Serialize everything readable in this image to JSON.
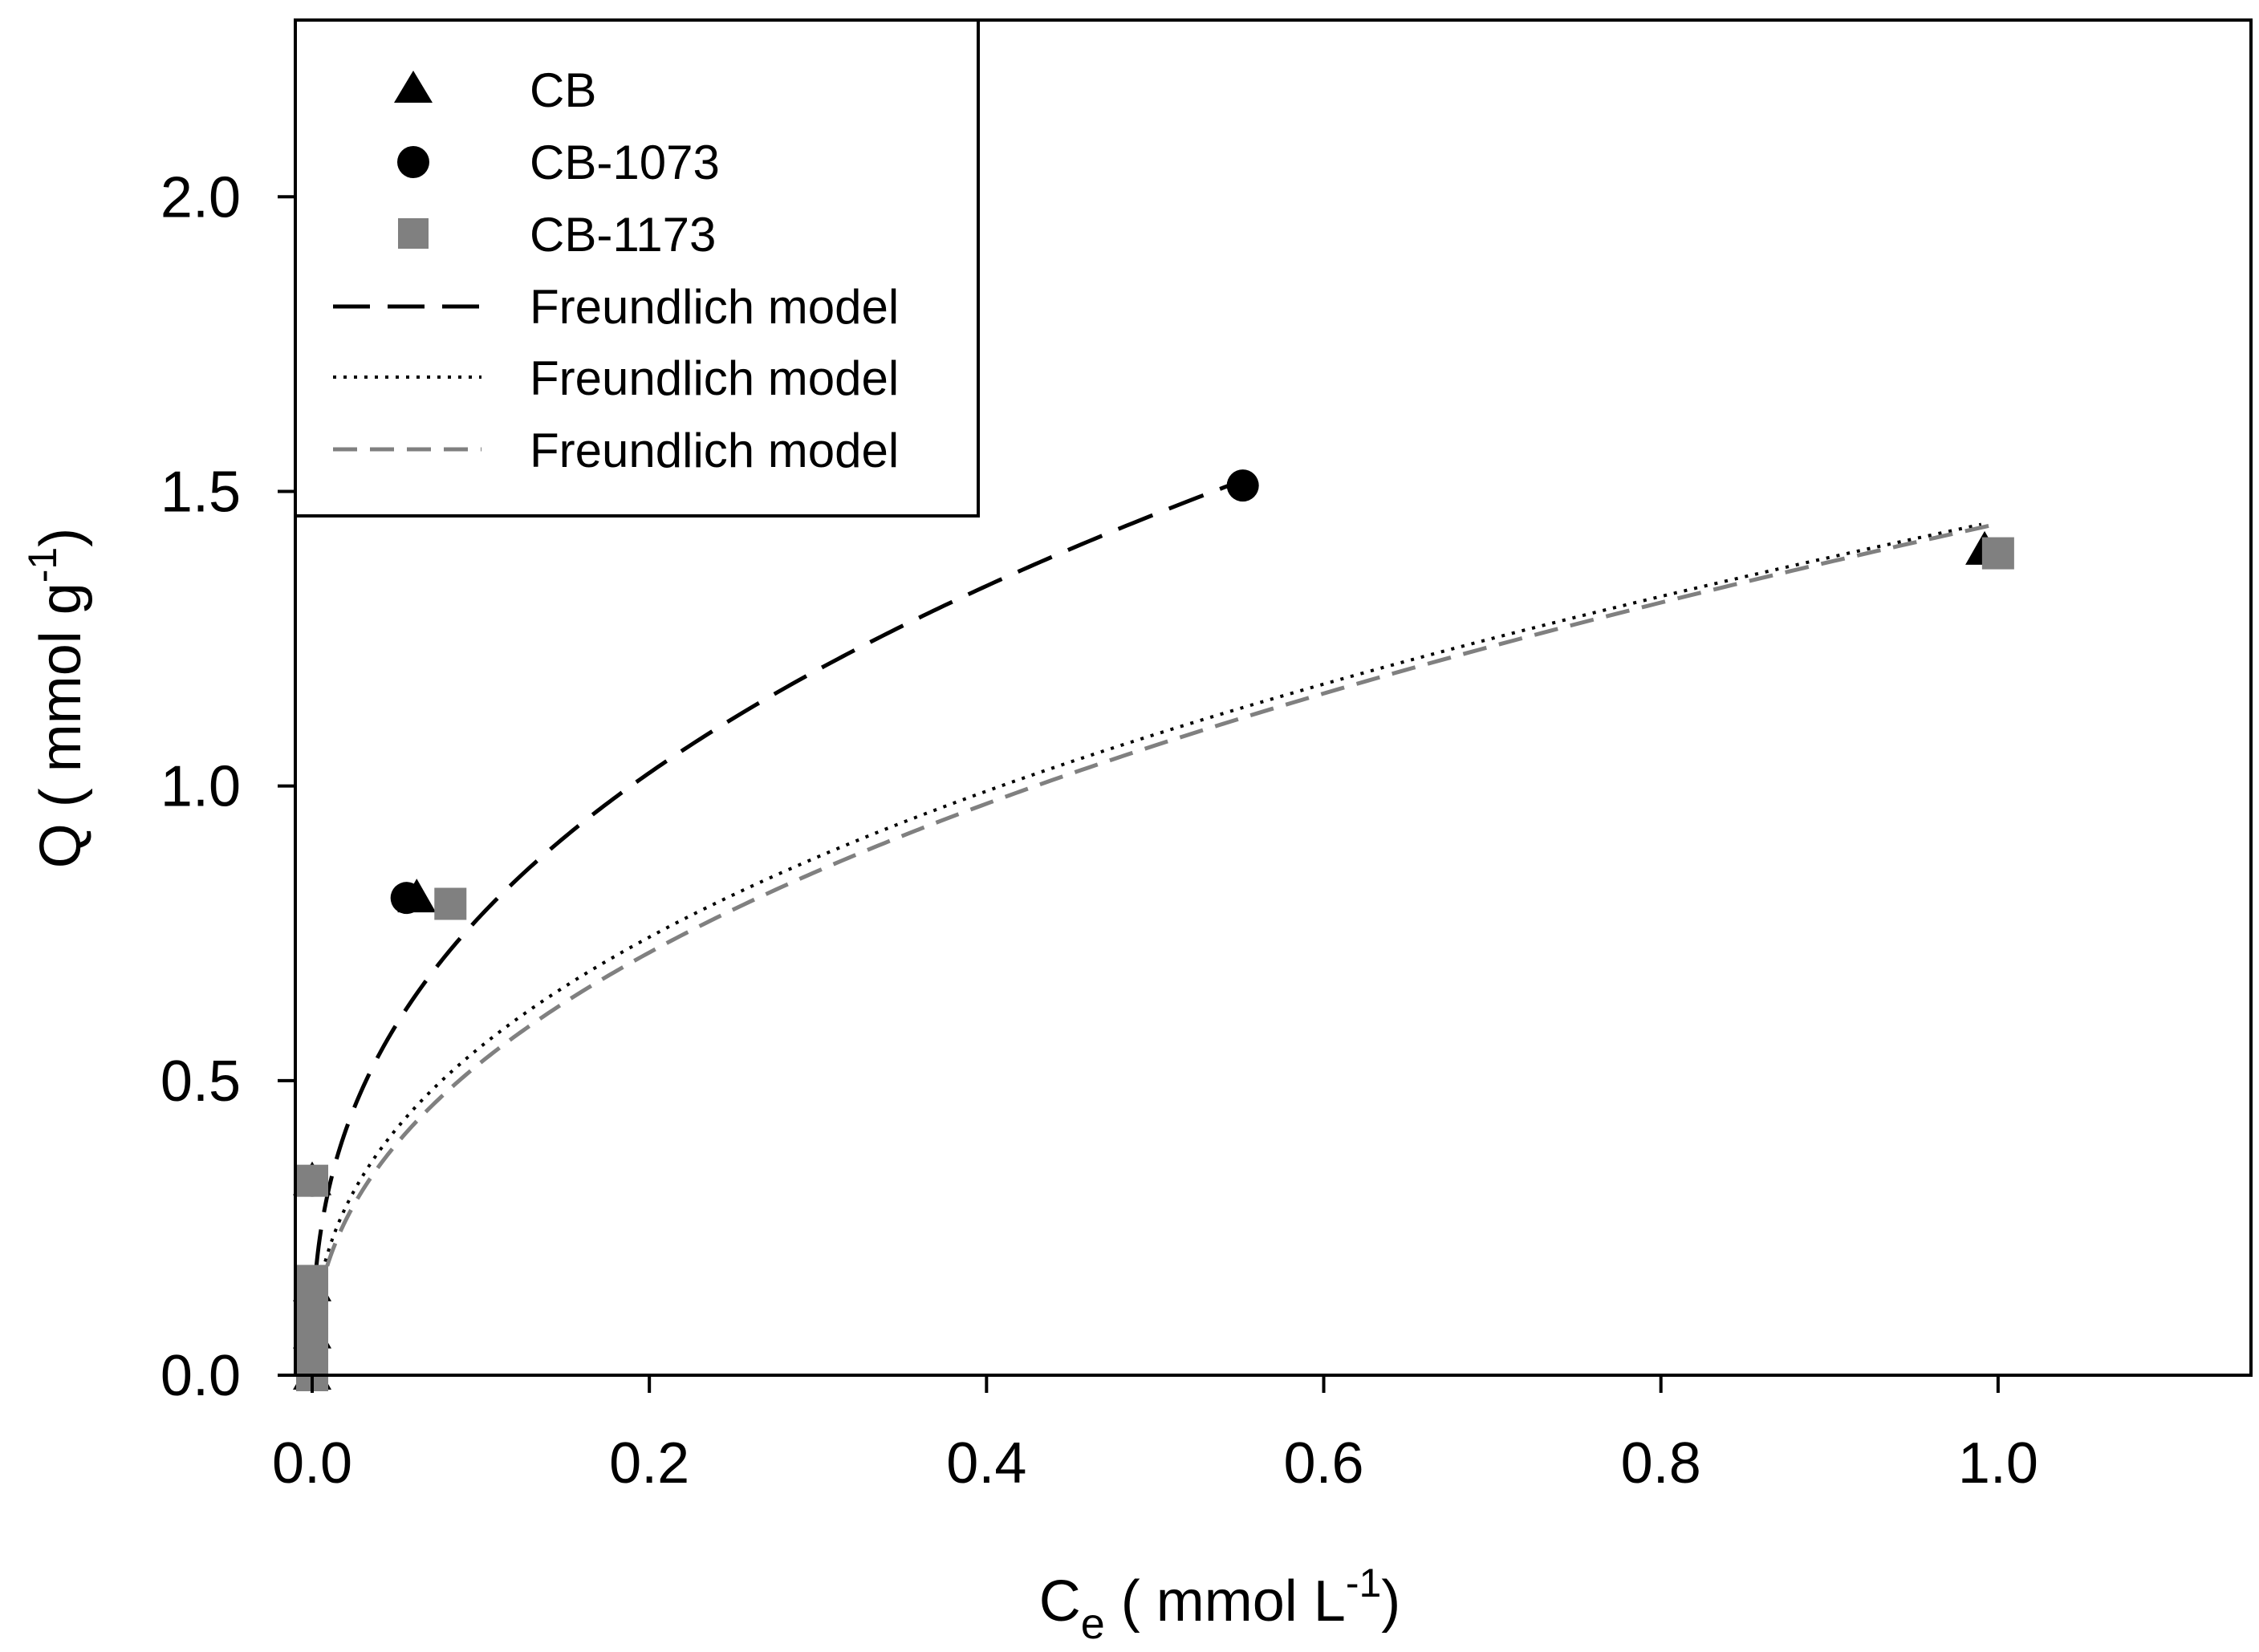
{
  "chart_data": {
    "type": "scatter",
    "title": "",
    "xlabel": {
      "base": "C",
      "sub": "e",
      "rest": " ( mmol L",
      "sup": "-1",
      "close": ")"
    },
    "ylabel": {
      "base": "Q ( mmol g",
      "sup": "-1",
      "close": ")"
    },
    "xlim": [
      -0.01,
      1.15
    ],
    "ylim": [
      0,
      2.3
    ],
    "x_ticks": [
      {
        "value": 0.0,
        "label": "0.0"
      },
      {
        "value": 0.2,
        "label": "0.2"
      },
      {
        "value": 0.4,
        "label": "0.4"
      },
      {
        "value": 0.6,
        "label": "0.6"
      },
      {
        "value": 0.8,
        "label": "0.8"
      },
      {
        "value": 1.0,
        "label": "1.0"
      }
    ],
    "y_ticks": [
      {
        "value": 0.0,
        "label": "0.0"
      },
      {
        "value": 0.5,
        "label": "0.5"
      },
      {
        "value": 1.0,
        "label": "1.0"
      },
      {
        "value": 1.5,
        "label": "1.5"
      },
      {
        "value": 2.0,
        "label": "2.0"
      }
    ],
    "legend_position": "top-left",
    "series": [
      {
        "name": "CB",
        "kind": "scatter",
        "marker": "triangle",
        "color": "#000000",
        "points": [
          [
            0.0,
            0.0
          ],
          [
            0.0,
            0.07
          ],
          [
            0.0,
            0.15
          ],
          [
            0.0,
            0.33
          ],
          [
            0.062,
            0.81
          ],
          [
            0.992,
            1.4
          ]
        ]
      },
      {
        "name": "CB-1073",
        "kind": "scatter",
        "marker": "circle",
        "color": "#000000",
        "points": [
          [
            0.0,
            0.0
          ],
          [
            0.0,
            0.08
          ],
          [
            0.0,
            0.16
          ],
          [
            0.0,
            0.33
          ],
          [
            0.056,
            0.81
          ],
          [
            0.552,
            1.51
          ]
        ]
      },
      {
        "name": "CB-1173",
        "kind": "scatter",
        "marker": "square",
        "color": "#808080",
        "points": [
          [
            0.0,
            0.0
          ],
          [
            0.0,
            0.05
          ],
          [
            0.0,
            0.09
          ],
          [
            0.0,
            0.13
          ],
          [
            0.0,
            0.16
          ],
          [
            0.0,
            0.33
          ],
          [
            0.082,
            0.8
          ],
          [
            1.0,
            1.395
          ]
        ]
      },
      {
        "name": "Freundlich model",
        "kind": "line",
        "style": "long-dash",
        "color": "#000000",
        "model": {
          "K": 1.915,
          "n": 0.39,
          "x_range": [
            0.0,
            0.55
          ]
        }
      },
      {
        "name": "Freundlich model",
        "kind": "line",
        "style": "dotted",
        "color": "#000000",
        "model": {
          "K": 1.45,
          "n": 0.415,
          "x_range": [
            0.0,
            0.99
          ]
        }
      },
      {
        "name": "Freundlich model",
        "kind": "line",
        "style": "dash",
        "color": "#808080",
        "model": {
          "K": 1.445,
          "n": 0.435,
          "x_range": [
            0.0,
            1.0
          ]
        }
      }
    ]
  }
}
